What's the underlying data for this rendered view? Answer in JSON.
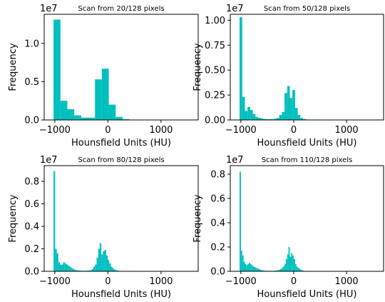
{
  "chart_data": [
    {
      "type": "bar",
      "title": "Scan from 20/128 pixels",
      "xlabel": "Hounsfield Units (HU)",
      "ylabel": "Frequency",
      "y_offset_label": "1e7",
      "xlim": [
        -1200,
        1700
      ],
      "ylim": [
        0,
        1.38
      ],
      "xticks": [
        -1000,
        0,
        1000
      ],
      "xtick_labels": [
        "−1000",
        "0",
        "1000"
      ],
      "yticks": [
        0.0,
        0.5,
        1.0
      ],
      "ytick_labels": [
        "0.0",
        "0.5",
        "1.0"
      ],
      "color": "#00bfbf",
      "bin_width": 130,
      "bins_start": [
        -1024,
        -894,
        -764,
        -634,
        -504,
        -374,
        -244,
        -114,
        16,
        146,
        276
      ],
      "values": [
        1.31,
        0.25,
        0.14,
        0.06,
        0.03,
        0.03,
        0.53,
        0.67,
        0.2,
        0.04,
        0.01
      ]
    },
    {
      "type": "bar",
      "title": "Scan from 50/128 pixels",
      "xlabel": "Hounsfield Units (HU)",
      "ylabel": "Frequency",
      "y_offset_label": "1e7",
      "xlim": [
        -1200,
        1700
      ],
      "ylim": [
        0,
        1.06
      ],
      "xticks": [
        -1000,
        0,
        1000
      ],
      "xtick_labels": [
        "−1000",
        "0",
        "1000"
      ],
      "yticks": [
        0.0,
        0.25,
        0.5,
        0.75,
        1.0
      ],
      "ytick_labels": [
        "0.00",
        "0.25",
        "0.50",
        "0.75",
        "1.00"
      ],
      "color": "#00bfbf",
      "bin_width": 50,
      "bins_start": [
        -1024,
        -974,
        -924,
        -874,
        -824,
        -774,
        -724,
        -674,
        -624,
        -574,
        -524,
        -474,
        -424,
        -374,
        -324,
        -274,
        -224,
        -174,
        -124,
        -74,
        -24,
        26,
        76,
        126,
        176,
        226
      ],
      "values": [
        1.03,
        0.23,
        0.09,
        0.13,
        0.1,
        0.06,
        0.03,
        0.02,
        0.015,
        0.01,
        0.008,
        0.008,
        0.008,
        0.012,
        0.02,
        0.05,
        0.08,
        0.27,
        0.34,
        0.22,
        0.3,
        0.12,
        0.05,
        0.02,
        0.01,
        0.005
      ]
    },
    {
      "type": "bar",
      "title": "Scan from 80/128 pixels",
      "xlabel": "Hounsfield Units (HU)",
      "ylabel": "Frequency",
      "y_offset_label": "1e7",
      "xlim": [
        -1200,
        1700
      ],
      "ylim": [
        0,
        0.94
      ],
      "xticks": [
        -1000,
        0,
        1000
      ],
      "xtick_labels": [
        "−1000",
        "0",
        "1000"
      ],
      "yticks": [
        0.0,
        0.2,
        0.4,
        0.6,
        0.8
      ],
      "ytick_labels": [
        "0.0",
        "0.2",
        "0.4",
        "0.6",
        "0.8"
      ],
      "color": "#00bfbf",
      "bin_width": 30,
      "bins_start": [
        -1024,
        -994,
        -964,
        -934,
        -904,
        -874,
        -844,
        -814,
        -784,
        -754,
        -724,
        -694,
        -664,
        -634,
        -604,
        -574,
        -544,
        -514,
        -484,
        -454,
        -424,
        -394,
        -364,
        -334,
        -304,
        -274,
        -244,
        -214,
        -184,
        -154,
        -124,
        -94,
        -64,
        -34,
        -4,
        26,
        56,
        86,
        116,
        146,
        176,
        206,
        236
      ],
      "values": [
        0.89,
        0.2,
        0.16,
        0.08,
        0.06,
        0.06,
        0.08,
        0.07,
        0.06,
        0.05,
        0.04,
        0.03,
        0.02,
        0.015,
        0.01,
        0.008,
        0.006,
        0.005,
        0.005,
        0.005,
        0.005,
        0.006,
        0.008,
        0.01,
        0.02,
        0.04,
        0.06,
        0.12,
        0.2,
        0.25,
        0.15,
        0.18,
        0.19,
        0.14,
        0.1,
        0.07,
        0.04,
        0.025,
        0.015,
        0.01,
        0.006,
        0.004,
        0.003
      ]
    },
    {
      "type": "bar",
      "title": "Scan from 110/128 pixels",
      "xlabel": "Hounsfield Units (HU)",
      "ylabel": "Frequency",
      "y_offset_label": "1e7",
      "xlim": [
        -1200,
        1700
      ],
      "ylim": [
        0,
        0.87
      ],
      "xticks": [
        -1000,
        0,
        1000
      ],
      "xtick_labels": [
        "−1000",
        "0",
        "1000"
      ],
      "yticks": [
        0.0,
        0.2,
        0.4,
        0.6,
        0.8
      ],
      "ytick_labels": [
        "0.0",
        "0.2",
        "0.4",
        "0.6",
        "0.8"
      ],
      "color": "#00bfbf",
      "bin_width": 25,
      "bins_start": [
        -1024,
        -999,
        -974,
        -949,
        -924,
        -899,
        -874,
        -849,
        -824,
        -799,
        -774,
        -749,
        -724,
        -699,
        -674,
        -649,
        -624,
        -599,
        -574,
        -549,
        -524,
        -499,
        -474,
        -449,
        -424,
        -399,
        -374,
        -349,
        -324,
        -299,
        -274,
        -249,
        -224,
        -199,
        -174,
        -149,
        -124,
        -99,
        -74,
        -49,
        -24,
        1,
        26,
        51,
        76,
        101,
        126,
        151,
        176,
        201
      ],
      "values": [
        0.82,
        0.17,
        0.13,
        0.08,
        0.06,
        0.05,
        0.06,
        0.07,
        0.06,
        0.05,
        0.04,
        0.035,
        0.03,
        0.025,
        0.02,
        0.015,
        0.01,
        0.008,
        0.006,
        0.005,
        0.004,
        0.004,
        0.004,
        0.004,
        0.004,
        0.004,
        0.005,
        0.006,
        0.008,
        0.01,
        0.015,
        0.02,
        0.03,
        0.04,
        0.06,
        0.1,
        0.14,
        0.2,
        0.12,
        0.15,
        0.13,
        0.1,
        0.06,
        0.04,
        0.03,
        0.02,
        0.012,
        0.008,
        0.005,
        0.003
      ]
    }
  ]
}
